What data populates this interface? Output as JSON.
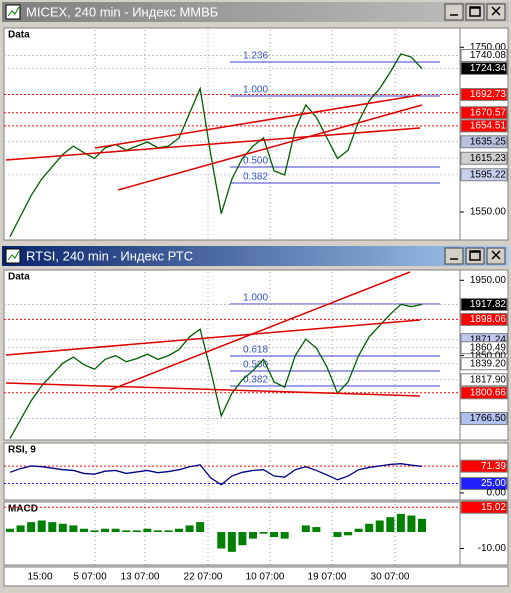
{
  "windows": [
    {
      "title": "MICEX, 240 min - Индекс ММВБ",
      "panes": [
        {
          "label": "Data",
          "ylim": [
            1516,
            1771
          ],
          "close": [
            1520,
            1545,
            1570,
            1590,
            1605,
            1620,
            1630,
            1622,
            1615,
            1628,
            1632,
            1625,
            1630,
            1635,
            1628,
            1630,
            1640,
            1670,
            1700,
            1620,
            1548,
            1590,
            1615,
            1630,
            1640,
            1600,
            1595,
            1650,
            1680,
            1665,
            1640,
            1615,
            1625,
            1660,
            1685,
            1700,
            1720,
            1742,
            1738,
            1724
          ],
          "fib_labels": [
            "1.236",
            "1.000",
            "0.500",
            "0.382"
          ],
          "price_labels": [
            {
              "value": 1750,
              "label": "1750.00"
            },
            {
              "value": 1740.08,
              "label": "1740.08",
              "color": "#ffffff"
            },
            {
              "value": 1724.34,
              "label": "1724.34",
              "color": "#000000"
            },
            {
              "value": 1692.73,
              "label": "1692.73",
              "color": "#ff0000"
            },
            {
              "value": 1670.57,
              "label": "1670.57",
              "color": "#ff0000"
            },
            {
              "value": 1654.51,
              "label": "1654.51",
              "color": "#ff0000"
            },
            {
              "value": 1635.25,
              "label": "1635.25",
              "color": "#b8c0e0"
            },
            {
              "value": 1615.23,
              "label": "1615.23",
              "color": "#d0d0d0"
            },
            {
              "value": 1595.22,
              "label": "1595.22",
              "color": "#c8d0f0"
            },
            {
              "value": 1550,
              "label": "1550.00"
            }
          ]
        }
      ]
    },
    {
      "title": "RTSI, 240 min - Индекс РТС",
      "panes": [
        {
          "label": "Data",
          "ylim": [
            1738,
            1961
          ],
          "close": [
            1740,
            1765,
            1790,
            1810,
            1825,
            1840,
            1848,
            1838,
            1832,
            1845,
            1850,
            1842,
            1846,
            1852,
            1845,
            1850,
            1858,
            1875,
            1885,
            1830,
            1770,
            1800,
            1818,
            1830,
            1845,
            1815,
            1808,
            1850,
            1872,
            1860,
            1835,
            1800,
            1815,
            1850,
            1875,
            1890,
            1905,
            1918,
            1915,
            1918
          ],
          "fib_labels": [
            "1.000",
            "0.618",
            "0.500",
            "0.382"
          ],
          "price_labels": [
            {
              "value": 1950,
              "label": "1950.00"
            },
            {
              "value": 1917.82,
              "label": "1917.82",
              "color": "#000000"
            },
            {
              "value": 1898.06,
              "label": "1898.06",
              "color": "#ff0000"
            },
            {
              "value": 1871.24,
              "label": "1871.24",
              "color": "#c0c8f0"
            },
            {
              "value": 1860.49,
              "label": "1860.49",
              "color": "#ffffff"
            },
            {
              "value": 1850,
              "label": "1850.00"
            },
            {
              "value": 1839.2,
              "label": "1839.20",
              "color": "#ffffff"
            },
            {
              "value": 1817.9,
              "label": "1817.90",
              "color": "#ffffff"
            },
            {
              "value": 1800.66,
              "label": "1800.66",
              "color": "#ff0000"
            },
            {
              "value": 1766.5,
              "label": "1766.50",
              "color": "#b0c0f0"
            }
          ]
        },
        {
          "label": "RSI, 9",
          "ylim": [
            -19,
            128
          ],
          "close": [
            55,
            65,
            72,
            70,
            66,
            62,
            60,
            52,
            50,
            58,
            60,
            52,
            56,
            60,
            54,
            57,
            62,
            70,
            75,
            40,
            22,
            45,
            55,
            60,
            62,
            45,
            42,
            62,
            70,
            60,
            48,
            35,
            45,
            62,
            68,
            72,
            76,
            78,
            74,
            71
          ],
          "price_labels": [
            {
              "value": 71.39,
              "label": "71.39",
              "color": "#ff0000"
            },
            {
              "value": 25,
              "label": "25.00",
              "color": "#2020ff"
            },
            {
              "value": 0,
              "label": "0.00"
            }
          ]
        },
        {
          "label": "MACD",
          "ylim": [
            -20,
            17
          ],
          "histogram": true,
          "close": [
            2,
            4,
            6,
            7,
            6,
            5,
            4,
            2,
            1,
            2,
            2,
            1,
            1,
            2,
            1,
            1,
            2,
            4,
            6,
            0,
            -10,
            -12,
            -8,
            -4,
            -1,
            -3,
            -4,
            0,
            4,
            3,
            0,
            -3,
            -2,
            2,
            5,
            7,
            9,
            11,
            10,
            8
          ],
          "price_labels": [
            {
              "value": 15.02,
              "label": "15.02",
              "color": "#ff0000"
            },
            {
              "value": -10,
              "label": "-10.00"
            }
          ]
        }
      ]
    }
  ],
  "time_axis": [
    "15:00",
    "5 07:00",
    "13 07:00",
    "22 07:00",
    "10 07:00",
    "19 07:00",
    "30 07:00"
  ]
}
